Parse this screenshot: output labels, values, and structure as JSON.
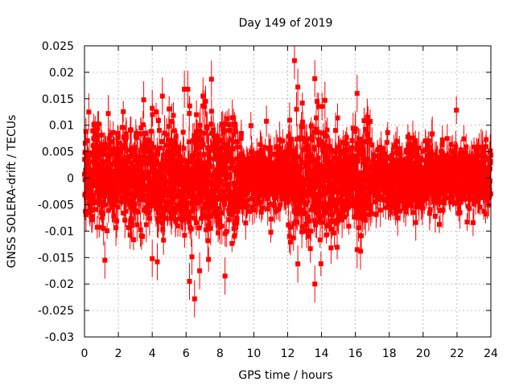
{
  "chart_data": {
    "type": "scatter",
    "title": "Day 149 of 2019",
    "xlabel": "GPS time / hours",
    "ylabel": "GNSS SOLERA-drift / TECUs",
    "xlim": [
      0,
      24
    ],
    "ylim": [
      -0.03,
      0.025
    ],
    "x_ticks": [
      0,
      2,
      4,
      6,
      8,
      10,
      12,
      14,
      16,
      18,
      20,
      22,
      24
    ],
    "x_tick_labels": [
      "0",
      "2",
      "4",
      "6",
      "8",
      "10",
      "12",
      "14",
      "16",
      "18",
      "20",
      "22",
      "24"
    ],
    "y_ticks": [
      -0.03,
      -0.025,
      -0.02,
      -0.015,
      -0.01,
      -0.005,
      0,
      0.005,
      0.01,
      0.015,
      0.02,
      0.025
    ],
    "y_tick_labels": [
      "-0.03",
      "-0.025",
      "-0.02",
      "-0.015",
      "-0.01",
      "-0.005",
      "0",
      "0.005",
      "0.01",
      "0.015",
      "0.02",
      "0.025"
    ],
    "grid": true,
    "series": [
      {
        "name": "SOLERA drift",
        "color": "#ff0000",
        "marker": "square",
        "error_bars": true,
        "n_points": 2880,
        "x_range": [
          0,
          24
        ],
        "mean": 0,
        "std_by_window": [
          {
            "x": [
              0,
              2
            ],
            "std": 0.004
          },
          {
            "x": [
              2,
              4
            ],
            "std": 0.0045
          },
          {
            "x": [
              4,
              6
            ],
            "std": 0.005
          },
          {
            "x": [
              6,
              9
            ],
            "std": 0.0055
          },
          {
            "x": [
              9,
              12
            ],
            "std": 0.003
          },
          {
            "x": [
              12,
              15
            ],
            "std": 0.0055
          },
          {
            "x": [
              15,
              17
            ],
            "std": 0.004
          },
          {
            "x": [
              17,
              24
            ],
            "std": 0.003
          }
        ],
        "typical_error": 0.0025,
        "notable_points": [
          {
            "x": 0.25,
            "y": 0.0125
          },
          {
            "x": 1.2,
            "y": -0.0155
          },
          {
            "x": 1.4,
            "y": 0.0122
          },
          {
            "x": 3.5,
            "y": 0.0148
          },
          {
            "x": 4.0,
            "y": -0.0152
          },
          {
            "x": 4.0,
            "y": 0.0132
          },
          {
            "x": 4.3,
            "y": -0.0158
          },
          {
            "x": 4.6,
            "y": 0.0155
          },
          {
            "x": 5.9,
            "y": 0.0168
          },
          {
            "x": 6.1,
            "y": 0.0168
          },
          {
            "x": 6.2,
            "y": -0.0195
          },
          {
            "x": 6.5,
            "y": -0.0228
          },
          {
            "x": 6.8,
            "y": -0.0175
          },
          {
            "x": 7.0,
            "y": 0.0155
          },
          {
            "x": 7.5,
            "y": 0.0187
          },
          {
            "x": 8.3,
            "y": -0.0185
          },
          {
            "x": 12.4,
            "y": 0.0222
          },
          {
            "x": 12.6,
            "y": 0.0172
          },
          {
            "x": 12.6,
            "y": -0.0162
          },
          {
            "x": 13.6,
            "y": 0.0188
          },
          {
            "x": 13.6,
            "y": -0.02
          },
          {
            "x": 14.2,
            "y": 0.0147
          },
          {
            "x": 16.1,
            "y": 0.016
          },
          {
            "x": 16.1,
            "y": -0.0135
          },
          {
            "x": 16.3,
            "y": -0.0138
          },
          {
            "x": 16.7,
            "y": 0.0115
          }
        ]
      }
    ]
  }
}
